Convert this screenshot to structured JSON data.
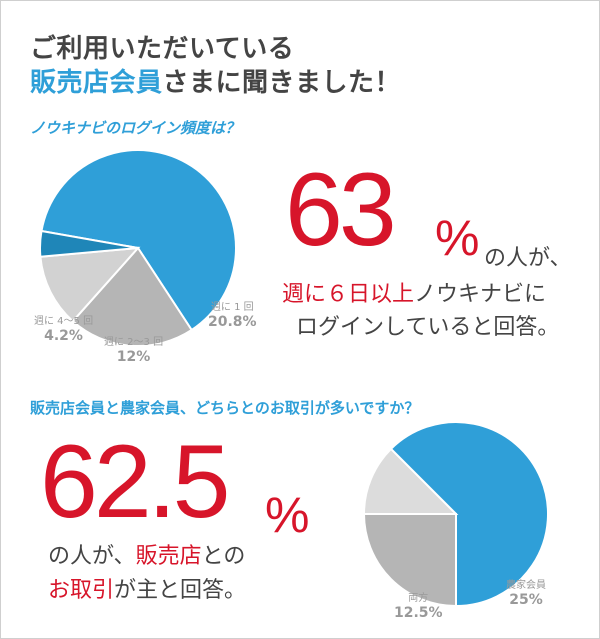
{
  "title": {
    "line1": "ご利用いただいている",
    "line2_highlight": "販売店会員",
    "line2_rest": "さまに聞きました！"
  },
  "q1": {
    "question": "ノウキナビのログイン頻度は？",
    "headline_number": "63",
    "headline_unit": "%",
    "text_a": "の人が、",
    "text_b_red": "週に６日以上",
    "text_b_rest": "ノウキナビに",
    "text_c": "ログインしていると回答。"
  },
  "q2": {
    "question": "販売店会員と農家会員、どちらとのお取引が多いですか？",
    "headline_number": "62.5",
    "headline_unit": "%",
    "text_a_plain": "の人が、",
    "text_a_red": "販売店",
    "text_a_tail": "との",
    "text_b_red": "お取引",
    "text_b_rest": "が主と回答。"
  },
  "chart_data": [
    {
      "type": "pie",
      "title": "ノウキナビのログイン頻度は？",
      "categories": [
        "",
        "週に 1 回",
        "週に 2〜3 回",
        "週に 4〜5 回"
      ],
      "values": [
        63,
        20.8,
        12,
        4.2
      ],
      "value_labels": [
        "",
        "20.8%",
        "12%",
        "4.2%"
      ],
      "colors": [
        "#2f9fd8",
        "#b5b5b5",
        "#d2d2d2",
        "#1f86b8"
      ],
      "explode": [
        0,
        0,
        0,
        0
      ]
    },
    {
      "type": "pie",
      "title": "販売店会員と農家会員、どちらとのお取引が多いですか？",
      "categories": [
        "",
        "農家会員",
        "両方"
      ],
      "values": [
        62.5,
        25,
        12.5
      ],
      "value_labels": [
        "",
        "25%",
        "12.5%"
      ],
      "colors": [
        "#2f9fd8",
        "#b5b5b5",
        "#dcdcdc"
      ]
    }
  ]
}
